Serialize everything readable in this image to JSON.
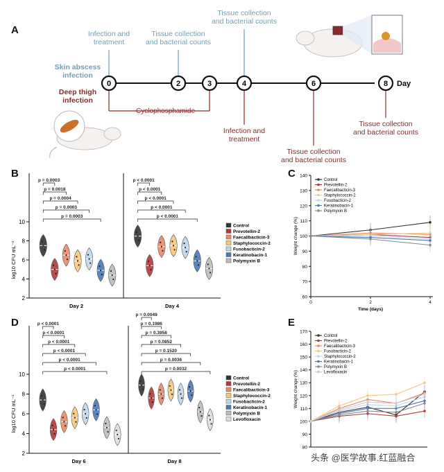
{
  "panels": {
    "A": {
      "letter": "A",
      "day_label": "Day",
      "timepoints": [
        "0",
        "2",
        "3",
        "4",
        "6",
        "8"
      ],
      "top_labels": [
        {
          "text": "Infection and\ntreatment",
          "day": "0"
        },
        {
          "text": "Tissue collection\nand bacterial counts",
          "day": "2"
        },
        {
          "text": "Tissue collection\nand bacterial counts",
          "day": "4"
        }
      ],
      "bottom_labels": [
        {
          "text": "Infection and\ntreatment",
          "day": "4"
        },
        {
          "text": "Tissue collection\nand bacterial counts",
          "day": "6"
        },
        {
          "text": "Tissue collection\nand bacterial counts",
          "day": "8"
        }
      ],
      "cyclophosphamide": "Cyclophosphamide",
      "skin_label": "Skin abscess\ninfection",
      "thigh_label": "Deep thigh\ninfection"
    },
    "B": {
      "letter": "B",
      "ylabel": "log10 CFU mL⁻¹",
      "groups": [
        "Day 2",
        "Day 4"
      ],
      "legend": [
        "Control",
        "Prevotellin-2",
        "Faecalibacticin-3",
        "Staphylococcin-2",
        "Fusobacticin-2",
        "Keratinobacin-1",
        "Polymyxin B"
      ],
      "pvalues_day2": [
        "p = 0.0003",
        "p = 0.0003",
        "p = 0.0004",
        "p = 0.0018",
        "p = 0.0003"
      ],
      "pvalues_day4": [
        "p < 0.0001",
        "p < 0.0001",
        "p < 0.0001",
        "p < 0.0001",
        "p < 0.0001"
      ]
    },
    "C": {
      "letter": "C",
      "ylabel": "Weight change (%)",
      "xlabel": "Time (days)",
      "legend": [
        "Control",
        "Prevotellin-2",
        "Faecalibacticin-3",
        "Staphylococcin-2",
        "Fusobacticin-2",
        "Keratinobacin-1",
        "Polymyxin B"
      ]
    },
    "D": {
      "letter": "D",
      "ylabel": "log10 CFU mL⁻¹",
      "groups": [
        "Day 6",
        "Day 8"
      ],
      "legend": [
        "Control",
        "Prevotellin-2",
        "Faecalibacticin-3",
        "Staphylococcin-2",
        "Fusobacticin-2",
        "Keratinobacin-1",
        "Polymyxin B",
        "Levofloxacin"
      ],
      "pvalues_day6": [
        "p < 0.0001",
        "p < 0.0001",
        "p < 0.0001",
        "p < 0.0001",
        "p < 0.0001",
        "p < 0.0001"
      ],
      "pvalues_day8": [
        "p = 0.0032",
        "p = 0.0036",
        "p = 0.1520",
        "p = 0.0852",
        "p = 0.3958",
        "p = 0.1986",
        "p = 0.0049"
      ]
    },
    "E": {
      "letter": "E",
      "ylabel": "Weight change (%)",
      "legend": [
        "Control",
        "Prevotellin-2",
        "Faecalibacticin-3",
        "Fusobacticin-2",
        "Staphylococcin-2",
        "Keratinobacin-1",
        "Polymyxin B",
        "Levofloxacin"
      ]
    }
  },
  "watermark": "头条 @医学故事.红蓝融合",
  "colors": {
    "control": "#333333",
    "prevotellin": "#b03a3a",
    "faecali": "#e8896a",
    "staph": "#f5c77a",
    "fuso": "#bcd7ea",
    "kerat": "#4a78b8",
    "poly": "#bbbbbb",
    "levo": "#dddddd"
  },
  "chart_data": [
    {
      "type": "violin",
      "panel": "B",
      "categories": [
        "Day 2",
        "Day 4"
      ],
      "ylim": [
        2,
        10
      ],
      "yticks": [
        2,
        4,
        6,
        8,
        10
      ],
      "series": [
        {
          "name": "Control",
          "values": [
            7.5,
            8.5
          ]
        },
        {
          "name": "Prevotellin-2",
          "values": [
            5.0,
            5.4
          ]
        },
        {
          "name": "Faecalibacticin-3",
          "values": [
            6.5,
            7.4
          ]
        },
        {
          "name": "Staphylococcin-2",
          "values": [
            5.9,
            7.5
          ]
        },
        {
          "name": "Fusobacticin-2",
          "values": [
            6.1,
            7.3
          ]
        },
        {
          "name": "Keratinobacin-1",
          "values": [
            4.9,
            5.9
          ]
        },
        {
          "name": "Polymyxin B",
          "values": [
            4.4,
            5.1
          ]
        }
      ]
    },
    {
      "type": "line",
      "panel": "C",
      "x": [
        0,
        2,
        4
      ],
      "xticks": [
        0,
        2,
        4
      ],
      "ylim": [
        60,
        140
      ],
      "yticks": [
        60,
        70,
        80,
        90,
        100,
        110,
        120,
        130,
        140
      ],
      "series": [
        {
          "name": "Control",
          "values": [
            100,
            104,
            109
          ]
        },
        {
          "name": "Prevotellin-2",
          "values": [
            100,
            101,
            99
          ]
        },
        {
          "name": "Faecalibacticin-3",
          "values": [
            100,
            102,
            101
          ]
        },
        {
          "name": "Staphylococcin-2",
          "values": [
            100,
            101,
            102
          ]
        },
        {
          "name": "Fusobacticin-2",
          "values": [
            100,
            100,
            98
          ]
        },
        {
          "name": "Keratinobacin-1",
          "values": [
            100,
            99,
            97
          ]
        },
        {
          "name": "Polymyxin B",
          "values": [
            100,
            98,
            94
          ]
        }
      ]
    },
    {
      "type": "violin",
      "panel": "D",
      "categories": [
        "Day 6",
        "Day 8"
      ],
      "ylim": [
        2,
        10
      ],
      "yticks": [
        2,
        4,
        6,
        8,
        10
      ],
      "series": [
        {
          "name": "Control",
          "values": [
            7.4,
            8.9
          ]
        },
        {
          "name": "Prevotellin-2",
          "values": [
            4.4,
            7.6
          ]
        },
        {
          "name": "Faecalibacticin-3",
          "values": [
            5.2,
            8.0
          ]
        },
        {
          "name": "Staphylococcin-2",
          "values": [
            5.6,
            8.4
          ]
        },
        {
          "name": "Fusobacticin-2",
          "values": [
            6.0,
            8.0
          ]
        },
        {
          "name": "Keratinobacin-1",
          "values": [
            6.4,
            8.3
          ]
        },
        {
          "name": "Polymyxin B",
          "values": [
            4.6,
            6.2
          ]
        },
        {
          "name": "Levofloxacin",
          "values": [
            3.9,
            5.4
          ]
        }
      ]
    },
    {
      "type": "line",
      "panel": "E",
      "x": [
        0,
        2,
        4,
        6,
        8
      ],
      "ylim": [
        80,
        170
      ],
      "yticks": [
        80,
        90,
        100,
        110,
        120,
        130,
        140,
        150,
        160,
        170
      ],
      "series": [
        {
          "name": "Control",
          "values": [
            100,
            107,
            111,
            105,
            123
          ]
        },
        {
          "name": "Prevotellin-2",
          "values": [
            100,
            104,
            106,
            104,
            108
          ]
        },
        {
          "name": "Faecalibacticin-3",
          "values": [
            100,
            110,
            117,
            114,
            122
          ]
        },
        {
          "name": "Fusobacticin-2",
          "values": [
            100,
            112,
            120,
            121,
            130
          ]
        },
        {
          "name": "Staphylococcin-2",
          "values": [
            100,
            108,
            113,
            112,
            119
          ]
        },
        {
          "name": "Keratinobacin-1",
          "values": [
            100,
            106,
            110,
            110,
            116
          ]
        },
        {
          "name": "Polymyxin B",
          "values": [
            100,
            105,
            108,
            107,
            114
          ]
        },
        {
          "name": "Levofloxacin",
          "values": [
            100,
            109,
            115,
            114,
            121
          ]
        }
      ]
    }
  ]
}
